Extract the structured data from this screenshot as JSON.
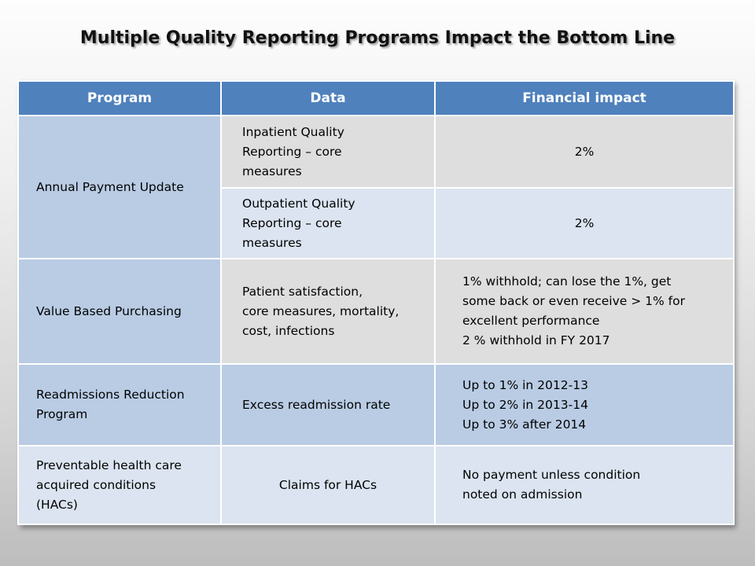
{
  "title": "Multiple Quality Reporting Programs Impact the Bottom Line",
  "table": {
    "headers": [
      "Program",
      "Data",
      "Financial impact"
    ],
    "rows": [
      {
        "program": "Annual Payment Update",
        "data": [
          "Inpatient Quality",
          "Reporting – core",
          "measures"
        ],
        "impact": [
          "2%"
        ]
      },
      {
        "data": [
          "Outpatient Quality",
          "Reporting – core",
          "measures"
        ],
        "impact": [
          "2%"
        ]
      },
      {
        "program": "Value Based Purchasing",
        "data": [
          "Patient satisfaction,",
          "core measures, mortality,",
          "cost, infections"
        ],
        "impact": [
          "1% withhold; can lose the 1%, get",
          "some back or even receive > 1% for",
          "excellent performance",
          "2 % withhold in FY 2017"
        ]
      },
      {
        "program": [
          "Readmissions Reduction",
          "Program"
        ],
        "data": [
          "Excess readmission rate"
        ],
        "impact": [
          "Up to 1% in 2012-13",
          "Up to 2% in 2013-14",
          "Up to 3% after 2014"
        ]
      },
      {
        "program": [
          "Preventable health care",
          "acquired conditions",
          "(HACs)"
        ],
        "data": [
          "Claims for HACs"
        ],
        "impact": [
          "No payment unless condition",
          "noted on admission"
        ]
      }
    ]
  },
  "colors": {
    "header": "#4f81bd",
    "row_dark": "#b9cce4",
    "row_light": "#dbe4f0",
    "cell_gray": "#dedede"
  }
}
